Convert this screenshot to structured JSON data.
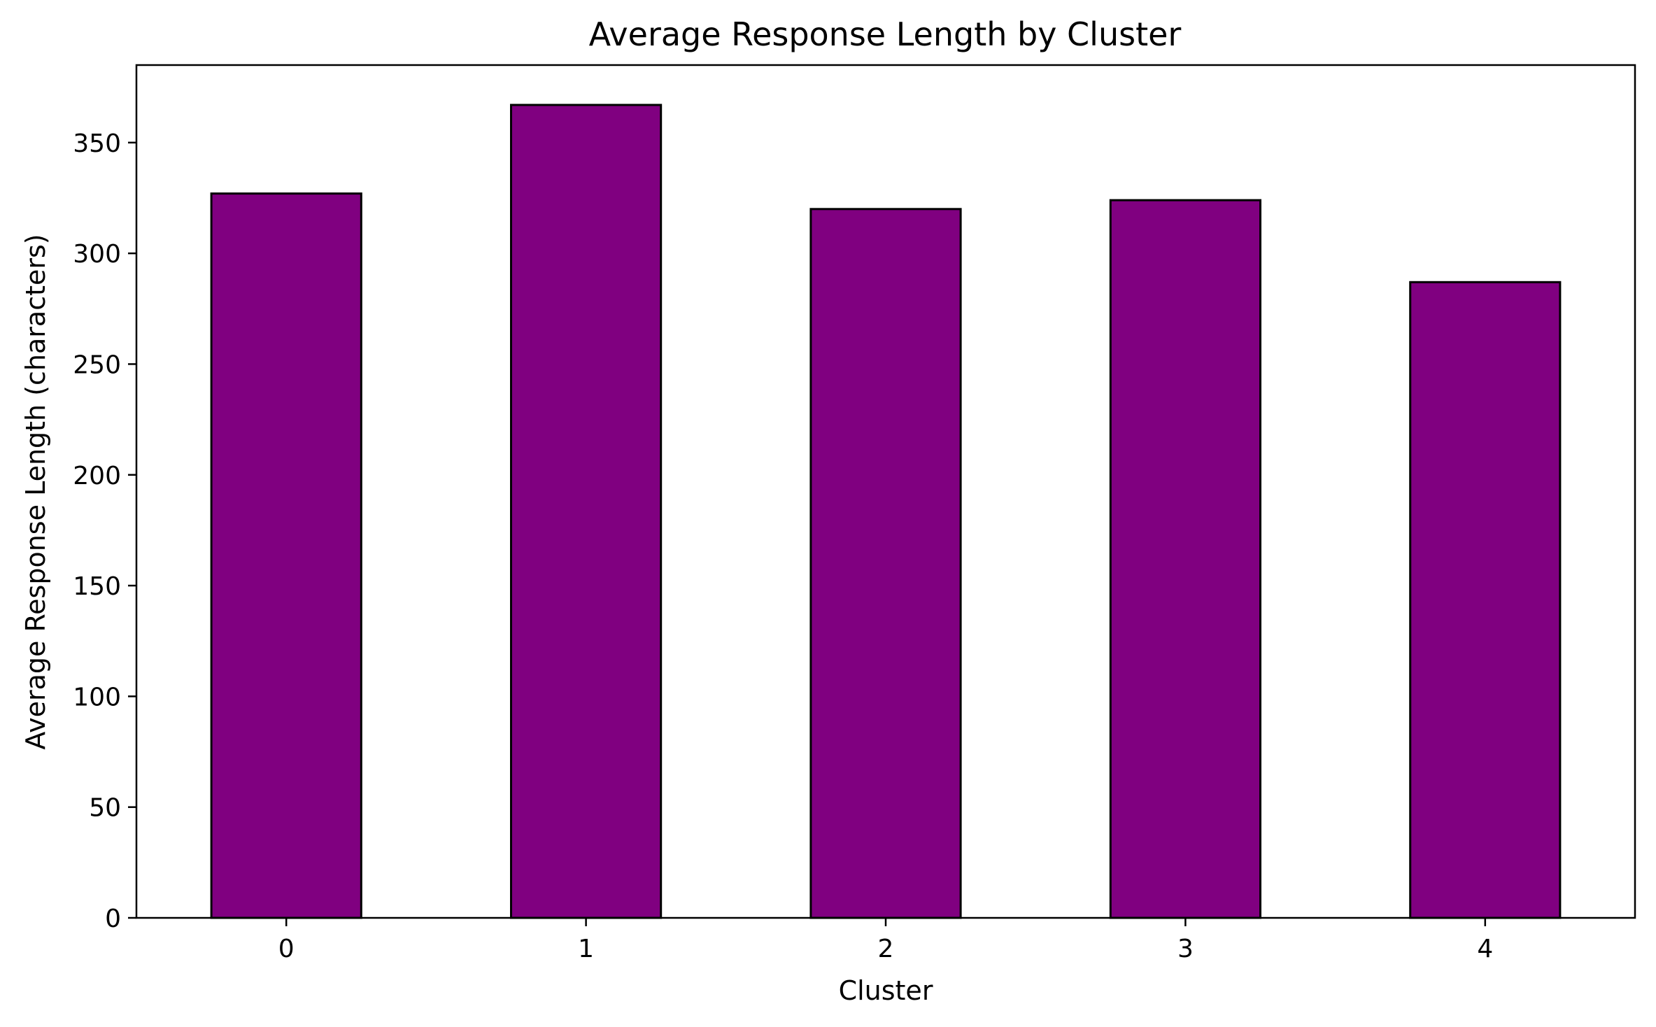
{
  "chart_data": {
    "type": "bar",
    "title": "Average Response Length by Cluster",
    "xlabel": "Cluster",
    "ylabel": "Average Response Length (characters)",
    "categories": [
      "0",
      "1",
      "2",
      "3",
      "4"
    ],
    "values": [
      327,
      367,
      320,
      324,
      287
    ],
    "ylim": [
      0,
      385
    ],
    "yticks": [
      0,
      50,
      100,
      150,
      200,
      250,
      300,
      350
    ],
    "grid": false,
    "legend": "none",
    "colors": {
      "bar_fill": "#800080",
      "bar_edge": "#000000",
      "axes": "#000000",
      "background": "#ffffff"
    }
  }
}
